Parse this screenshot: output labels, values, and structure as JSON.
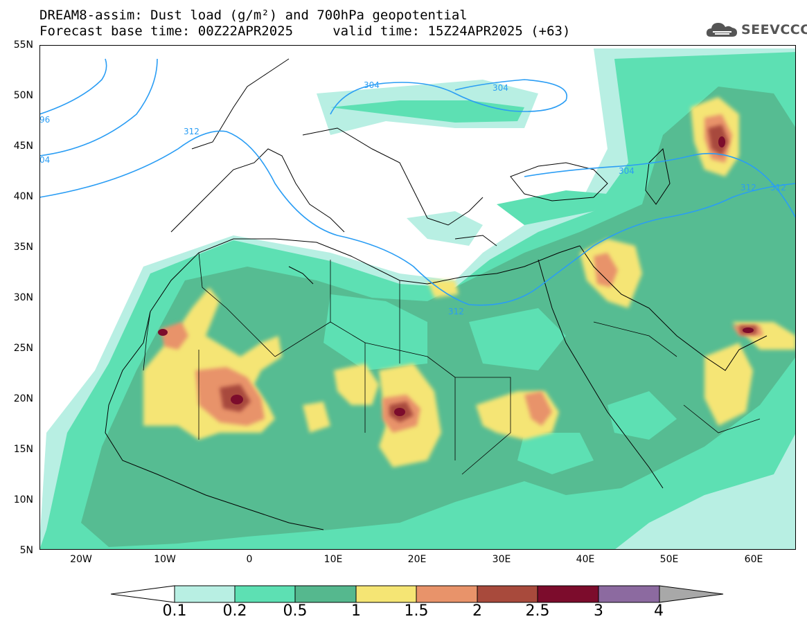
{
  "header": {
    "title": "DREAM8-assim: Dust load (g/m²) and 700hPa geopotential",
    "subtitle": "Forecast base time: 00Z22APR2025     valid time: 15Z24APR2025 (+63)"
  },
  "logo": {
    "text": "SEEVCCC",
    "icon": "cloud-icon"
  },
  "map": {
    "lat_labels": [
      "55N",
      "50N",
      "45N",
      "40N",
      "35N",
      "30N",
      "25N",
      "20N",
      "15N",
      "10N",
      "5N"
    ],
    "lon_labels": [
      "20W",
      "10W",
      "0",
      "10E",
      "20E",
      "30E",
      "40E",
      "50E",
      "60E"
    ],
    "contour_labels": [
      "96",
      "04",
      "312",
      "304",
      "304",
      "304",
      "312",
      "312",
      "312"
    ],
    "colors": {
      "land": "#ffffff",
      "coast": "#000000",
      "geopotential_line": "#2a9df4"
    }
  },
  "colorbar": {
    "labels": [
      "0.1",
      "0.2",
      "0.5",
      "1",
      "1.5",
      "2",
      "2.5",
      "3",
      "4"
    ],
    "colors": [
      "#ffffff",
      "#b8efe3",
      "#5de0b3",
      "#55b88e",
      "#f5e574",
      "#e8936a",
      "#a84a3c",
      "#7c0c2c",
      "#8c6aa0",
      "#a8a8a8"
    ]
  }
}
